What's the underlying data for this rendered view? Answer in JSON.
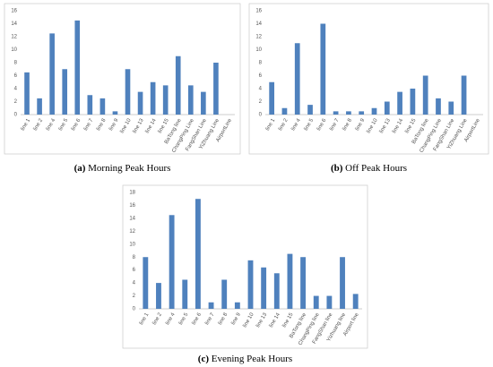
{
  "chart_data": [
    {
      "type": "bar",
      "caption_label": "(a)",
      "title": "Morning Peak Hours",
      "categories": [
        "line 1",
        "line 2",
        "line 4",
        "line 5",
        "line 6",
        "line 7",
        "line 8",
        "line 9",
        "line 10",
        "line 13",
        "line 14",
        "line 15",
        "BaTong line",
        "ChangPing Line",
        "FangShan Line",
        "YiZhuang Line",
        "AirportLine"
      ],
      "values": [
        6.5,
        2.5,
        12.5,
        7,
        14.5,
        3,
        2.5,
        0.5,
        7,
        3.5,
        5,
        4.5,
        9,
        4.5,
        3.5,
        8,
        0
      ],
      "color": "#4f81bd",
      "ylim": [
        0,
        16
      ],
      "yticks": [
        0,
        2,
        4,
        6,
        8,
        10,
        12,
        14,
        16
      ],
      "grid": false
    },
    {
      "type": "bar",
      "caption_label": "(b)",
      "title": "Off Peak Hours",
      "categories": [
        "line 1",
        "line 2",
        "line 4",
        "line 5",
        "line 6",
        "line 7",
        "line 8",
        "line 9",
        "line 10",
        "line 13",
        "line 14",
        "line 15",
        "BaTong line",
        "ChangPing Line",
        "FangShan Line",
        "YiZhuang Line",
        "AirportLine"
      ],
      "values": [
        5,
        1,
        11,
        1.5,
        14,
        0.5,
        0.5,
        0.5,
        1,
        2,
        3.5,
        4,
        6,
        2.5,
        2,
        6,
        0
      ],
      "color": "#4f81bd",
      "ylim": [
        0,
        16
      ],
      "yticks": [
        0,
        2,
        4,
        6,
        8,
        10,
        12,
        14,
        16
      ],
      "grid": false
    },
    {
      "type": "bar",
      "caption_label": "(c)",
      "title": "Evening Peak Hours",
      "categories": [
        "line 1",
        "line 2",
        "line 4",
        "line 5",
        "line 6",
        "line 7",
        "line 8",
        "line 9",
        "line 10",
        "line 13",
        "line 14",
        "line 15",
        "BaTong line",
        "ChangPing line",
        "FangShan line",
        "Yizhuang line",
        "Airport line"
      ],
      "values": [
        8,
        4,
        14.5,
        4.5,
        17,
        1,
        4.5,
        1,
        7.5,
        6.4,
        5.5,
        8.5,
        8,
        2,
        2,
        8,
        2.3
      ],
      "color": "#4f81bd",
      "ylim": [
        0,
        18
      ],
      "yticks": [
        0,
        2,
        4,
        6,
        8,
        10,
        12,
        14,
        16,
        18
      ],
      "grid": false
    }
  ]
}
